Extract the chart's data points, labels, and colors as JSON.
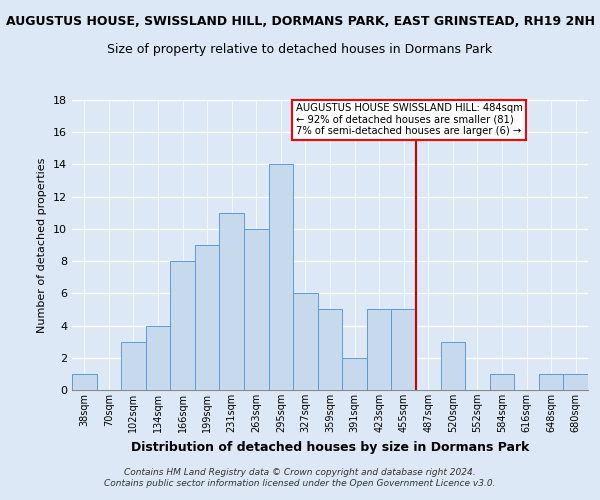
{
  "title": "AUGUSTUS HOUSE, SWISSLAND HILL, DORMANS PARK, EAST GRINSTEAD, RH19 2NH",
  "subtitle": "Size of property relative to detached houses in Dormans Park",
  "xlabel": "Distribution of detached houses by size in Dormans Park",
  "ylabel": "Number of detached properties",
  "bin_labels": [
    "38sqm",
    "70sqm",
    "102sqm",
    "134sqm",
    "166sqm",
    "199sqm",
    "231sqm",
    "263sqm",
    "295sqm",
    "327sqm",
    "359sqm",
    "391sqm",
    "423sqm",
    "455sqm",
    "487sqm",
    "520sqm",
    "552sqm",
    "584sqm",
    "616sqm",
    "648sqm",
    "680sqm"
  ],
  "bar_heights": [
    1,
    0,
    3,
    4,
    8,
    9,
    11,
    10,
    14,
    6,
    5,
    2,
    5,
    5,
    0,
    3,
    0,
    1,
    0,
    1,
    1
  ],
  "bar_color": "#c6d9ed",
  "bar_edge_color": "#5b9bd5",
  "ylim": [
    0,
    18
  ],
  "yticks": [
    0,
    2,
    4,
    6,
    8,
    10,
    12,
    14,
    16,
    18
  ],
  "vline_x_index": 14,
  "vline_color": "#cc0000",
  "annotation_title": "AUGUSTUS HOUSE SWISSLAND HILL: 484sqm",
  "annotation_line1": "← 92% of detached houses are smaller (81)",
  "annotation_line2": "7% of semi-detached houses are larger (6) →",
  "footer1": "Contains HM Land Registry data © Crown copyright and database right 2024.",
  "footer2": "Contains public sector information licensed under the Open Government Licence v3.0.",
  "background_color": "#dce8f5",
  "bar_area_color": "#dce8f5",
  "grid_color": "#ffffff",
  "title_fontsize": 9,
  "subtitle_fontsize": 9,
  "ylabel_fontsize": 8,
  "xlabel_fontsize": 9
}
